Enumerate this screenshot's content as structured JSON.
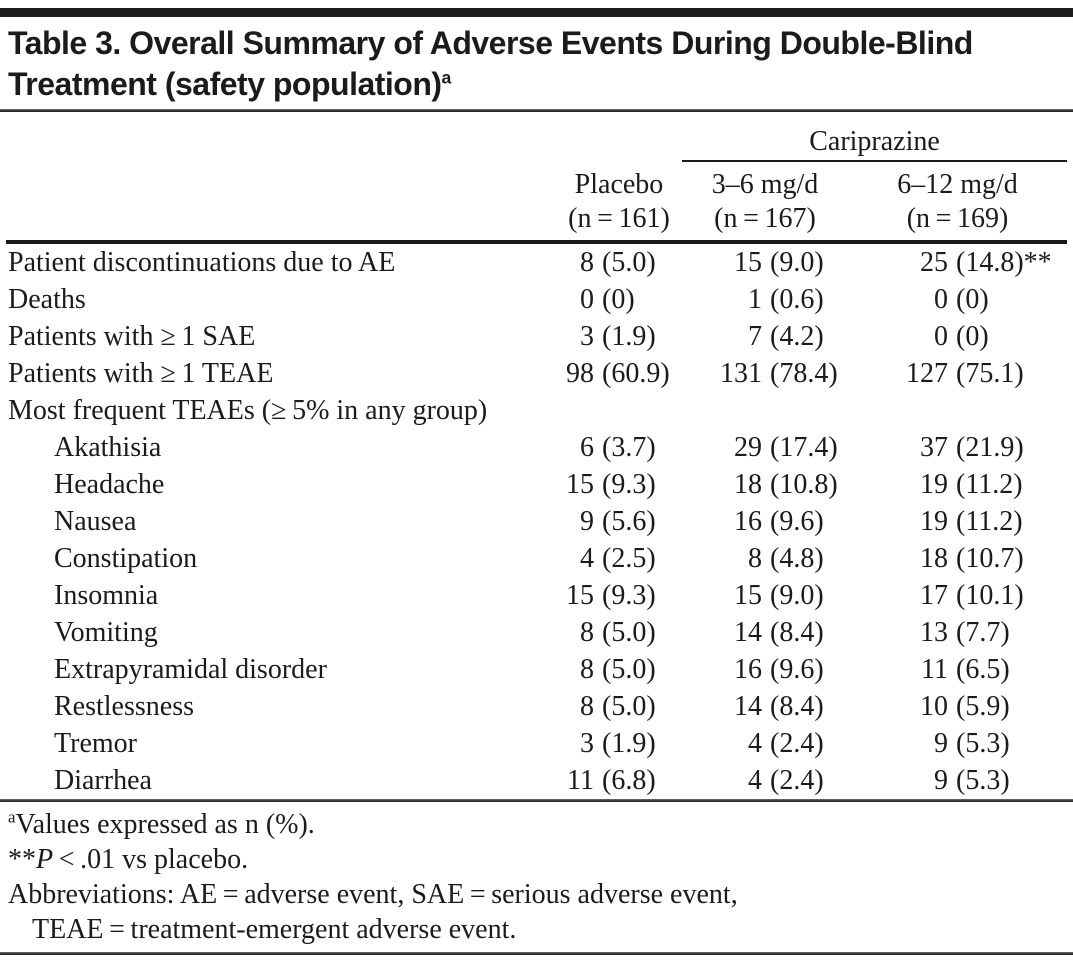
{
  "title": {
    "line1": "Table 3. Overall Summary of Adverse Events During Double-Blind",
    "line2": "Treatment (safety population)",
    "sup": "a"
  },
  "table": {
    "group_header": "Cariprazine",
    "columns": [
      {
        "label": "Placebo",
        "n": "(n = 161)"
      },
      {
        "label": "3–6 mg/d",
        "n": "(n = 167)"
      },
      {
        "label": "6–12 mg/d",
        "n": "(n = 169)"
      }
    ],
    "rows": [
      {
        "label": "Patient discontinuations due to AE",
        "indent": false,
        "section": false,
        "values": [
          {
            "n": "8",
            "pct": "(5.0)"
          },
          {
            "n": "15",
            "pct": "(9.0)"
          },
          {
            "n": "25",
            "pct": "(14.8)",
            "suffix": "**"
          }
        ]
      },
      {
        "label": "Deaths",
        "indent": false,
        "section": false,
        "values": [
          {
            "n": "0",
            "pct": "(0)"
          },
          {
            "n": "1",
            "pct": "(0.6)"
          },
          {
            "n": "0",
            "pct": "(0)"
          }
        ]
      },
      {
        "label": "Patients with ≥ 1 SAE",
        "indent": false,
        "section": false,
        "values": [
          {
            "n": "3",
            "pct": "(1.9)"
          },
          {
            "n": "7",
            "pct": "(4.2)"
          },
          {
            "n": "0",
            "pct": "(0)"
          }
        ]
      },
      {
        "label": "Patients with ≥ 1 TEAE",
        "indent": false,
        "section": false,
        "values": [
          {
            "n": "98",
            "pct": "(60.9)"
          },
          {
            "n": "131",
            "pct": "(78.4)"
          },
          {
            "n": "127",
            "pct": "(75.1)"
          }
        ]
      },
      {
        "label": "Most frequent TEAEs (≥ 5% in any group)",
        "indent": false,
        "section": true,
        "values": []
      },
      {
        "label": "Akathisia",
        "indent": true,
        "section": false,
        "values": [
          {
            "n": "6",
            "pct": "(3.7)"
          },
          {
            "n": "29",
            "pct": "(17.4)"
          },
          {
            "n": "37",
            "pct": "(21.9)"
          }
        ]
      },
      {
        "label": "Headache",
        "indent": true,
        "section": false,
        "values": [
          {
            "n": "15",
            "pct": "(9.3)"
          },
          {
            "n": "18",
            "pct": "(10.8)"
          },
          {
            "n": "19",
            "pct": "(11.2)"
          }
        ]
      },
      {
        "label": "Nausea",
        "indent": true,
        "section": false,
        "values": [
          {
            "n": "9",
            "pct": "(5.6)"
          },
          {
            "n": "16",
            "pct": "(9.6)"
          },
          {
            "n": "19",
            "pct": "(11.2)"
          }
        ]
      },
      {
        "label": "Constipation",
        "indent": true,
        "section": false,
        "values": [
          {
            "n": "4",
            "pct": "(2.5)"
          },
          {
            "n": "8",
            "pct": "(4.8)"
          },
          {
            "n": "18",
            "pct": "(10.7)"
          }
        ]
      },
      {
        "label": "Insomnia",
        "indent": true,
        "section": false,
        "values": [
          {
            "n": "15",
            "pct": "(9.3)"
          },
          {
            "n": "15",
            "pct": "(9.0)"
          },
          {
            "n": "17",
            "pct": "(10.1)"
          }
        ]
      },
      {
        "label": "Vomiting",
        "indent": true,
        "section": false,
        "values": [
          {
            "n": "8",
            "pct": "(5.0)"
          },
          {
            "n": "14",
            "pct": "(8.4)"
          },
          {
            "n": "13",
            "pct": "(7.7)"
          }
        ]
      },
      {
        "label": "Extrapyramidal disorder",
        "indent": true,
        "section": false,
        "values": [
          {
            "n": "8",
            "pct": "(5.0)"
          },
          {
            "n": "16",
            "pct": "(9.6)"
          },
          {
            "n": "11",
            "pct": "(6.5)"
          }
        ]
      },
      {
        "label": "Restlessness",
        "indent": true,
        "section": false,
        "values": [
          {
            "n": "8",
            "pct": "(5.0)"
          },
          {
            "n": "14",
            "pct": "(8.4)"
          },
          {
            "n": "10",
            "pct": "(5.9)"
          }
        ]
      },
      {
        "label": "Tremor",
        "indent": true,
        "section": false,
        "values": [
          {
            "n": "3",
            "pct": "(1.9)"
          },
          {
            "n": "4",
            "pct": "(2.4)"
          },
          {
            "n": "9",
            "pct": "(5.3)"
          }
        ]
      },
      {
        "label": "Diarrhea",
        "indent": true,
        "section": false,
        "values": [
          {
            "n": "11",
            "pct": "(6.8)"
          },
          {
            "n": "4",
            "pct": "(2.4)"
          },
          {
            "n": "9",
            "pct": "(5.3)"
          }
        ]
      }
    ]
  },
  "footnotes": {
    "values_sup": "a",
    "values_text": "Values expressed as n (%).",
    "p_stars": "**",
    "p_symbol": "P",
    "p_text": " < .01 vs placebo.",
    "abbrev_line1": "Abbreviations: AE = adverse event, SAE = serious adverse event,",
    "abbrev_line2": "TEAE = treatment-emergent adverse event."
  }
}
